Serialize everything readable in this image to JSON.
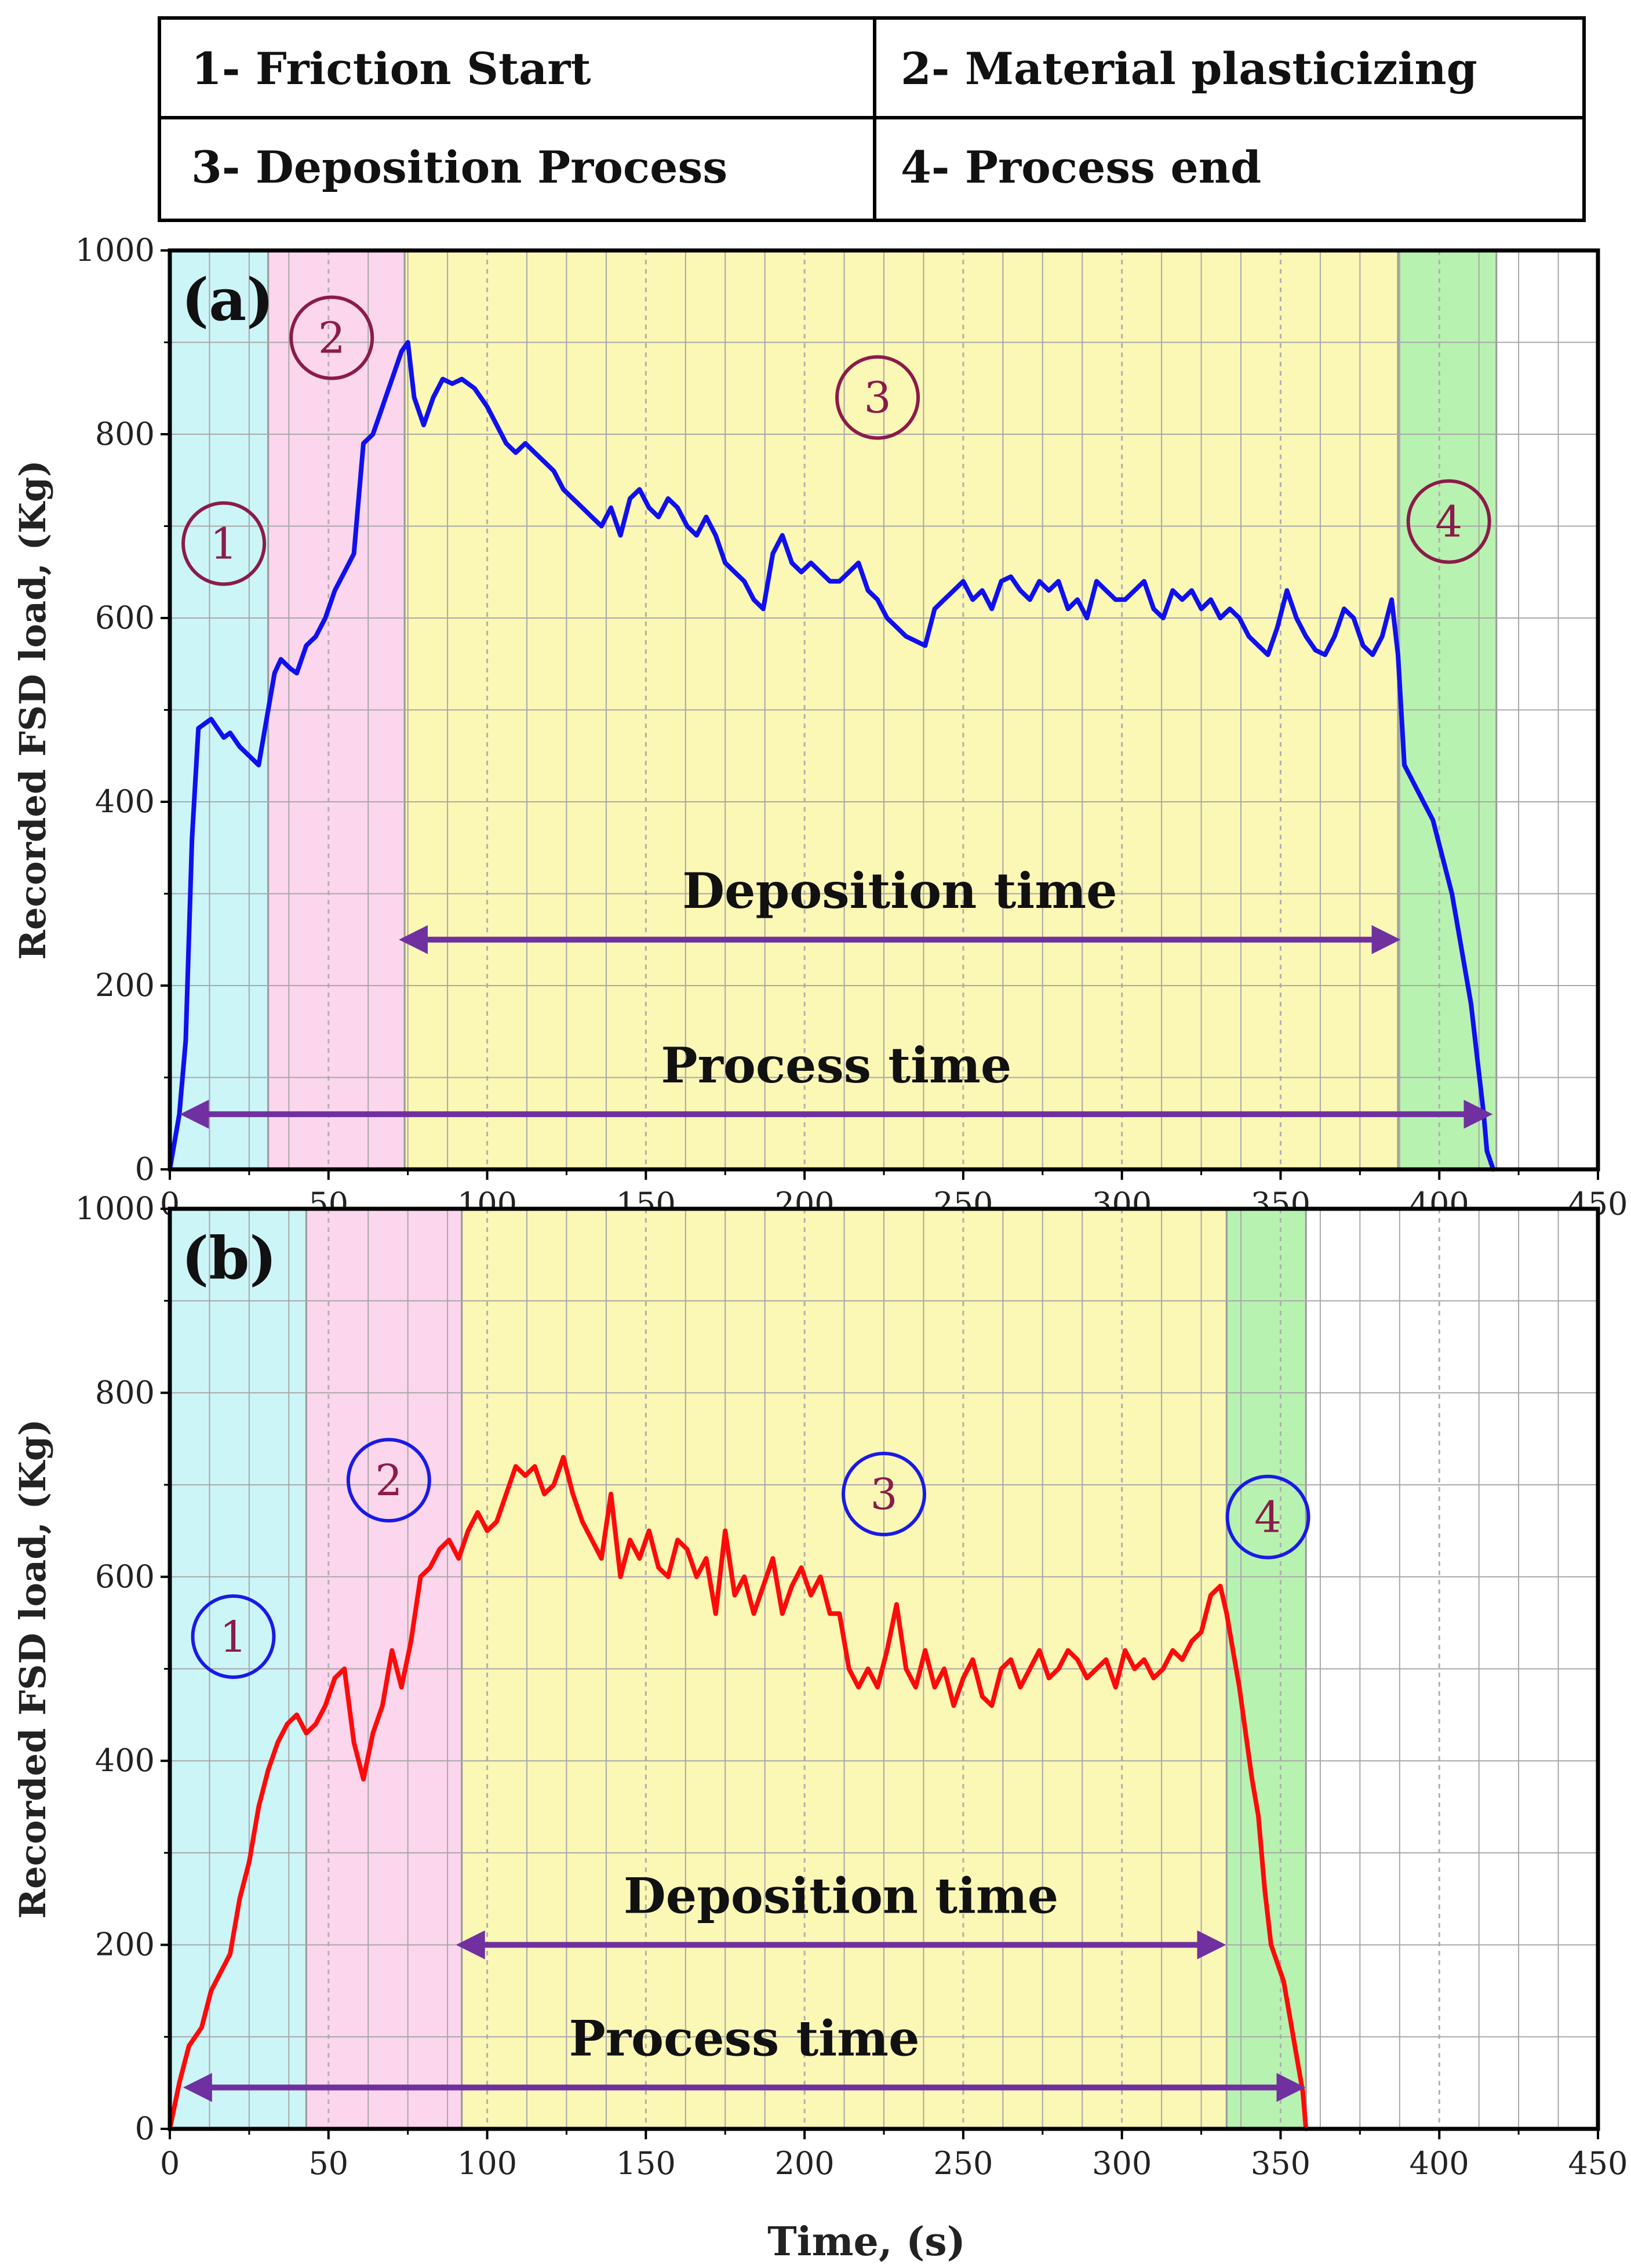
{
  "legend_table": {
    "cell_1": "1- Friction Start",
    "cell_2": "2- Material plasticizing",
    "cell_3": "3- Deposition Process",
    "cell_4": "4- Process end"
  },
  "colors": {
    "stage1": "#ccf5f8",
    "stage2": "#fbd6ec",
    "stage3": "#fbf7b5",
    "stage4": "#b8f2b0",
    "series_a": "#1010ee",
    "series_b": "#ff0a0a",
    "arrow": "#7030a0",
    "marker_maroon": "#8a1c4a",
    "marker_blue": "#1a1ae6"
  },
  "chart_data": [
    {
      "type": "line",
      "panel_label": "(a)",
      "xlabel": "",
      "ylabel": "Recorded FSD load, (Kg)",
      "xlim": [
        0,
        450
      ],
      "ylim": [
        0,
        1000
      ],
      "xticks": [
        "0",
        "50",
        "100",
        "150",
        "200",
        "250",
        "300",
        "350",
        "400",
        "450"
      ],
      "yticks": [
        "0",
        "200",
        "400",
        "600",
        "800",
        "1000"
      ],
      "grid": true,
      "regions": [
        {
          "stage": 1,
          "x0": 0,
          "x1": 31
        },
        {
          "stage": 2,
          "x0": 31,
          "x1": 74
        },
        {
          "stage": 3,
          "x0": 74,
          "x1": 387
        },
        {
          "stage": 4,
          "x0": 387,
          "x1": 418
        }
      ],
      "stage_markers": [
        {
          "label": "1",
          "x": 17,
          "y": 681
        },
        {
          "label": "2",
          "x": 51,
          "y": 905
        },
        {
          "label": "3",
          "x": 223,
          "y": 840
        },
        {
          "label": "4",
          "x": 403,
          "y": 705
        }
      ],
      "arrows": [
        {
          "label": "Deposition time",
          "x0": 74,
          "x1": 386,
          "y": 250
        },
        {
          "label": "Process time",
          "x0": 5,
          "x1": 415,
          "y": 60
        }
      ],
      "series": [
        {
          "color": "series_a",
          "x": [
            0,
            3,
            5,
            7,
            9,
            11,
            13,
            15,
            17,
            19,
            22,
            25,
            28,
            31,
            33,
            35,
            38,
            40,
            43,
            46,
            49,
            52,
            55,
            58,
            61,
            64,
            67,
            68,
            70,
            71,
            72,
            73,
            75,
            77,
            80,
            83,
            86,
            89,
            92,
            96,
            100,
            103,
            106,
            109,
            112,
            115,
            118,
            121,
            124,
            127,
            130,
            133,
            136,
            139,
            142,
            145,
            148,
            151,
            154,
            157,
            160,
            163,
            166,
            169,
            172,
            175,
            178,
            181,
            184,
            187,
            190,
            193,
            196,
            199,
            202,
            205,
            208,
            211,
            214,
            217,
            220,
            223,
            226,
            229,
            232,
            235,
            238,
            241,
            244,
            247,
            250,
            253,
            256,
            259,
            262,
            265,
            268,
            271,
            274,
            277,
            280,
            283,
            286,
            289,
            292,
            295,
            298,
            301,
            304,
            307,
            310,
            313,
            316,
            319,
            322,
            325,
            328,
            331,
            334,
            337,
            340,
            343,
            346,
            349,
            352,
            355,
            358,
            361,
            364,
            367,
            370,
            373,
            376,
            379,
            382,
            385,
            387,
            389,
            392,
            395,
            398,
            401,
            404,
            407,
            410,
            412,
            414,
            415,
            417
          ],
          "y": [
            0,
            60,
            140,
            360,
            480,
            485,
            490,
            480,
            470,
            475,
            460,
            450,
            440,
            500,
            540,
            555,
            545,
            540,
            570,
            580,
            600,
            630,
            650,
            670,
            790,
            800,
            830,
            840,
            860,
            870,
            880,
            890,
            900,
            840,
            810,
            840,
            860,
            855,
            860,
            850,
            830,
            810,
            790,
            780,
            790,
            780,
            770,
            760,
            740,
            730,
            720,
            710,
            700,
            720,
            690,
            730,
            740,
            720,
            710,
            730,
            720,
            700,
            690,
            710,
            690,
            660,
            650,
            640,
            620,
            610,
            670,
            690,
            660,
            650,
            660,
            650,
            640,
            640,
            650,
            660,
            630,
            620,
            600,
            590,
            580,
            575,
            570,
            610,
            620,
            630,
            640,
            620,
            630,
            610,
            640,
            645,
            630,
            620,
            640,
            630,
            640,
            610,
            620,
            600,
            640,
            630,
            620,
            620,
            630,
            640,
            610,
            600,
            630,
            620,
            630,
            610,
            620,
            600,
            610,
            600,
            580,
            570,
            560,
            590,
            630,
            600,
            580,
            565,
            560,
            580,
            610,
            600,
            570,
            560,
            580,
            620,
            560,
            440,
            420,
            400,
            380,
            340,
            300,
            240,
            180,
            120,
            60,
            20,
            0
          ]
        }
      ]
    },
    {
      "type": "line",
      "panel_label": "(b)",
      "xlabel": "Time, (s)",
      "ylabel": "Recorded FSD load, (Kg)",
      "xlim": [
        0,
        450
      ],
      "ylim": [
        0,
        1000
      ],
      "xticks": [
        "0",
        "50",
        "100",
        "150",
        "200",
        "250",
        "300",
        "350",
        "400",
        "450"
      ],
      "yticks": [
        "0",
        "200",
        "400",
        "600",
        "800",
        "1000"
      ],
      "grid": true,
      "regions": [
        {
          "stage": 1,
          "x0": 0,
          "x1": 43
        },
        {
          "stage": 2,
          "x0": 43,
          "x1": 92
        },
        {
          "stage": 3,
          "x0": 92,
          "x1": 333
        },
        {
          "stage": 4,
          "x0": 333,
          "x1": 358
        }
      ],
      "stage_markers": [
        {
          "label": "1",
          "x": 20,
          "y": 535
        },
        {
          "label": "2",
          "x": 69,
          "y": 705
        },
        {
          "label": "3",
          "x": 225,
          "y": 690
        },
        {
          "label": "4",
          "x": 346,
          "y": 665
        }
      ],
      "arrows": [
        {
          "label": "Deposition time",
          "x0": 92,
          "x1": 331,
          "y": 200
        },
        {
          "label": "Process time",
          "x0": 6,
          "x1": 356,
          "y": 45
        }
      ],
      "series": [
        {
          "color": "series_b",
          "x": [
            0,
            3,
            6,
            8,
            10,
            13,
            16,
            19,
            22,
            25,
            28,
            31,
            34,
            37,
            40,
            43,
            46,
            49,
            52,
            55,
            58,
            61,
            64,
            67,
            70,
            73,
            76,
            79,
            82,
            85,
            88,
            91,
            94,
            97,
            100,
            103,
            106,
            109,
            112,
            115,
            118,
            121,
            124,
            127,
            130,
            133,
            136,
            139,
            142,
            145,
            148,
            151,
            154,
            157,
            160,
            163,
            166,
            169,
            172,
            175,
            178,
            181,
            184,
            187,
            190,
            193,
            196,
            199,
            202,
            205,
            208,
            211,
            214,
            217,
            220,
            223,
            226,
            229,
            232,
            235,
            238,
            241,
            244,
            247,
            250,
            253,
            256,
            259,
            262,
            265,
            268,
            271,
            274,
            277,
            280,
            283,
            286,
            289,
            292,
            295,
            298,
            301,
            304,
            307,
            310,
            313,
            316,
            319,
            322,
            325,
            328,
            331,
            333,
            335,
            337,
            339,
            341,
            343,
            345,
            347,
            349,
            351,
            353,
            355,
            357,
            358
          ],
          "y": [
            0,
            50,
            90,
            100,
            110,
            150,
            170,
            190,
            250,
            290,
            350,
            390,
            420,
            440,
            450,
            430,
            440,
            460,
            490,
            500,
            420,
            380,
            430,
            460,
            520,
            480,
            530,
            600,
            610,
            630,
            640,
            620,
            650,
            670,
            650,
            660,
            690,
            720,
            710,
            720,
            690,
            700,
            730,
            690,
            660,
            640,
            620,
            690,
            600,
            640,
            620,
            650,
            610,
            600,
            640,
            630,
            600,
            620,
            560,
            650,
            580,
            600,
            560,
            590,
            620,
            560,
            590,
            610,
            580,
            600,
            560,
            560,
            500,
            480,
            500,
            480,
            520,
            570,
            500,
            480,
            520,
            480,
            500,
            460,
            490,
            510,
            470,
            460,
            500,
            510,
            480,
            500,
            520,
            490,
            500,
            520,
            510,
            490,
            500,
            510,
            480,
            520,
            500,
            510,
            490,
            500,
            520,
            510,
            530,
            540,
            580,
            590,
            560,
            520,
            480,
            430,
            380,
            340,
            260,
            200,
            180,
            160,
            120,
            80,
            40,
            0
          ]
        }
      ]
    }
  ]
}
